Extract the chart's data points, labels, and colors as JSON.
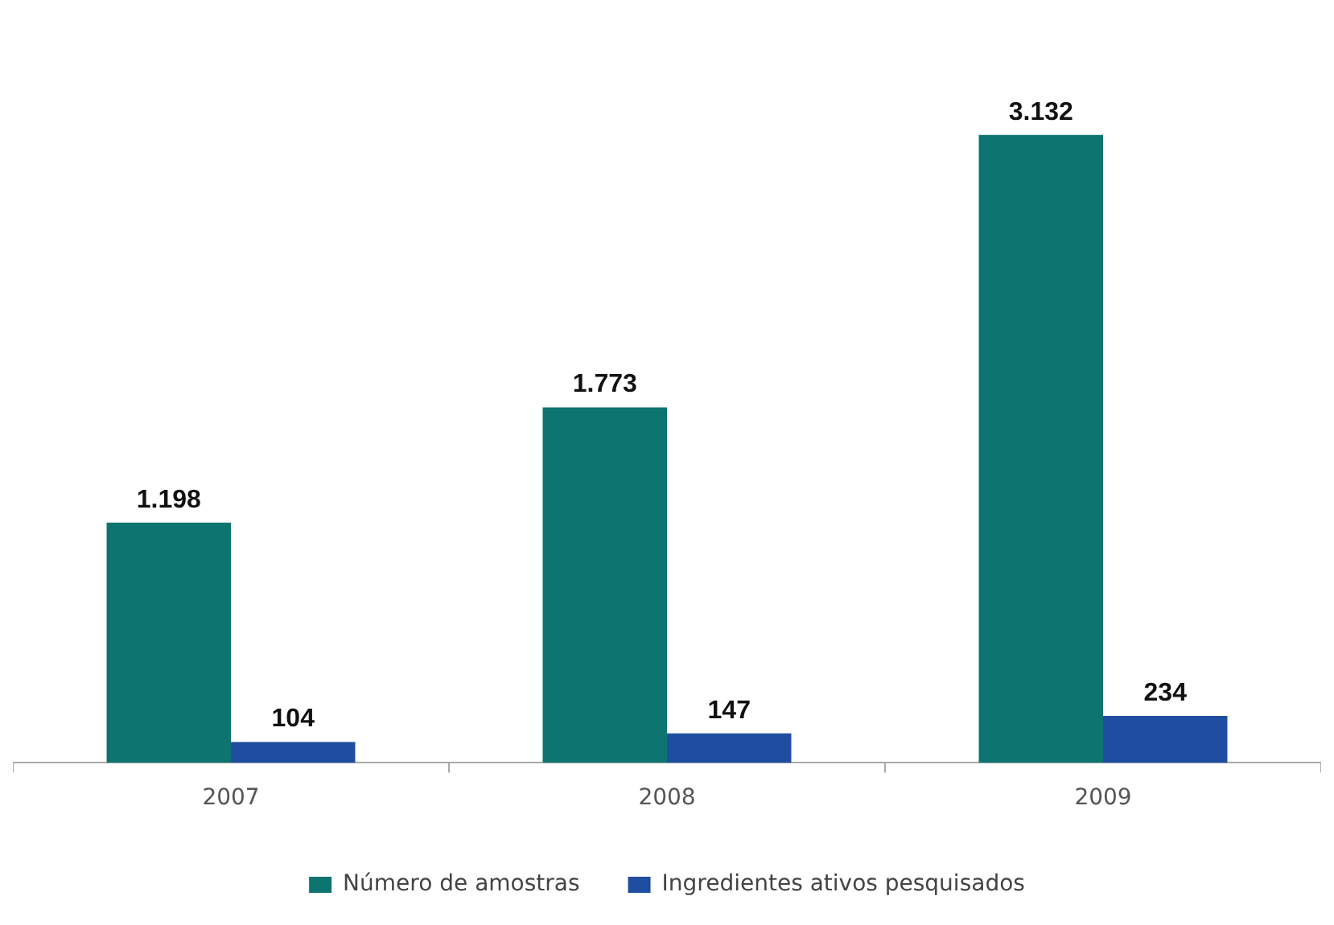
{
  "chart_data": {
    "type": "bar",
    "categories": [
      "2007",
      "2008",
      "2009"
    ],
    "series": [
      {
        "name": "Número de amostras",
        "color": "#0e7470",
        "values": [
          1198,
          1773,
          3132
        ],
        "value_labels": [
          "1.198",
          "1.773",
          "3.132"
        ]
      },
      {
        "name": "Ingredientes ativos pesquisados",
        "color": "#1f4ea0",
        "values": [
          104,
          147,
          234
        ],
        "value_labels": [
          "104",
          "147",
          "234"
        ]
      }
    ],
    "legend": "bottom",
    "grid": false
  }
}
